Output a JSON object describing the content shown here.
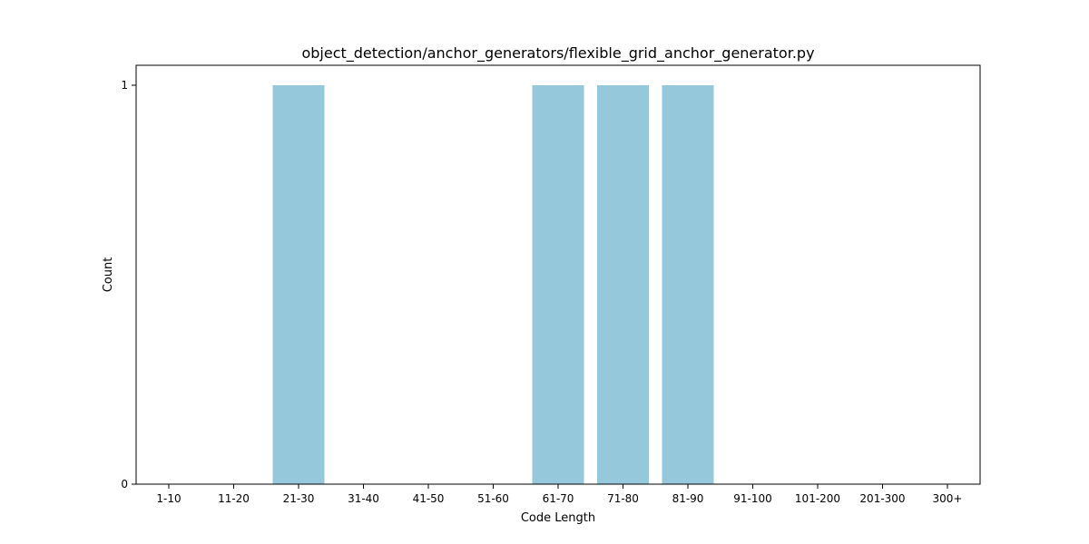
{
  "chart_data": {
    "type": "bar",
    "title": "object_detection/anchor_generators/flexible_grid_anchor_generator.py",
    "xlabel": "Code Length",
    "ylabel": "Count",
    "categories": [
      "1-10",
      "11-20",
      "21-30",
      "31-40",
      "41-50",
      "51-60",
      "61-70",
      "71-80",
      "81-90",
      "91-100",
      "101-200",
      "201-300",
      "300+"
    ],
    "values": [
      0,
      0,
      1,
      0,
      0,
      0,
      1,
      1,
      1,
      0,
      0,
      0,
      0
    ],
    "ylim": [
      0,
      1
    ],
    "yticks": [
      0,
      1
    ],
    "bar_color": "#96c8dc",
    "grid": false,
    "legend": "none"
  }
}
